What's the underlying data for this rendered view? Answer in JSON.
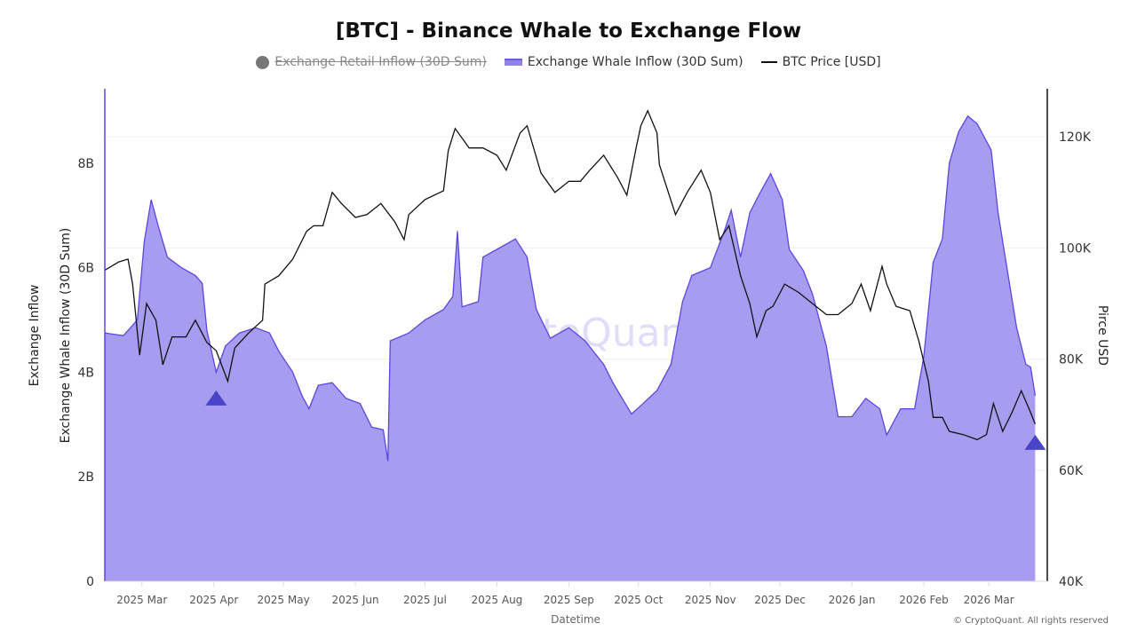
{
  "chart_data": {
    "type": "area",
    "title": "[BTC] - Binance Whale to Exchange Flow",
    "legend": [
      {
        "label": "Exchange Retail Inflow (30D Sum)",
        "hidden": true,
        "color": "#777777"
      },
      {
        "label": "Exchange Whale Inflow (30D Sum)",
        "hidden": false,
        "color": "#a89cf0"
      },
      {
        "label": "BTC Price [USD]",
        "hidden": false,
        "color": "#111111"
      }
    ],
    "legend_placement": "top",
    "xlabel": "Datetime",
    "ylabel_left_outer": "Exchange Inflow",
    "ylabel_left": "Exchange Whale Inflow (30D Sum)",
    "ylabel_right": "Pirce USD",
    "x_range": [
      "2025-02-13",
      "2026-03-22"
    ],
    "x_ticks": [
      {
        "date": "2025-03-01",
        "label": "2025 Mar"
      },
      {
        "date": "2025-04-01",
        "label": "2025 Apr"
      },
      {
        "date": "2025-05-01",
        "label": "2025 May"
      },
      {
        "date": "2025-06-01",
        "label": "2025 Jun"
      },
      {
        "date": "2025-07-01",
        "label": "2025 Jul"
      },
      {
        "date": "2025-08-01",
        "label": "2025 Aug"
      },
      {
        "date": "2025-09-01",
        "label": "2025 Sep"
      },
      {
        "date": "2025-10-01",
        "label": "2025 Oct"
      },
      {
        "date": "2025-11-01",
        "label": "2025 Nov"
      },
      {
        "date": "2025-12-01",
        "label": "2025 Dec"
      },
      {
        "date": "2026-01-01",
        "label": "2026 Jan"
      },
      {
        "date": "2026-02-01",
        "label": "2026 Feb"
      },
      {
        "date": "2026-03-01",
        "label": "2026 Mar"
      }
    ],
    "y_left": {
      "range": [
        0,
        9.4
      ],
      "ticks": [
        {
          "v": 0,
          "label": "0"
        },
        {
          "v": 2,
          "label": "2B"
        },
        {
          "v": 4,
          "label": "4B"
        },
        {
          "v": 6,
          "label": "6B"
        },
        {
          "v": 8,
          "label": "8B"
        }
      ],
      "unit": "B"
    },
    "y_right": {
      "range": [
        40,
        128
      ],
      "ticks": [
        {
          "v": 40,
          "label": "40K"
        },
        {
          "v": 60,
          "label": "60K"
        },
        {
          "v": 80,
          "label": "80K"
        },
        {
          "v": 100,
          "label": "100K"
        },
        {
          "v": 120,
          "label": "120K"
        }
      ],
      "unit": "K USD"
    },
    "grid": true,
    "series": [
      {
        "name": "Exchange Whale Inflow (30D Sum)",
        "axis": "left",
        "color": "#a89cf0",
        "line_color": "#5b47e0",
        "points": [
          [
            "2025-02-13",
            4.75
          ],
          [
            "2025-02-21",
            4.7
          ],
          [
            "2025-02-27",
            5.0
          ],
          [
            "2025-03-02",
            6.5
          ],
          [
            "2025-03-05",
            7.3
          ],
          [
            "2025-03-08",
            6.8
          ],
          [
            "2025-03-12",
            6.2
          ],
          [
            "2025-03-18",
            6.0
          ],
          [
            "2025-03-24",
            5.85
          ],
          [
            "2025-03-27",
            5.7
          ],
          [
            "2025-03-29",
            4.8
          ],
          [
            "2025-04-02",
            4.0
          ],
          [
            "2025-04-06",
            4.5
          ],
          [
            "2025-04-12",
            4.75
          ],
          [
            "2025-04-19",
            4.85
          ],
          [
            "2025-04-25",
            4.75
          ],
          [
            "2025-04-29",
            4.4
          ],
          [
            "2025-05-05",
            4.0
          ],
          [
            "2025-05-09",
            3.55
          ],
          [
            "2025-05-12",
            3.3
          ],
          [
            "2025-05-16",
            3.75
          ],
          [
            "2025-05-22",
            3.8
          ],
          [
            "2025-05-28",
            3.5
          ],
          [
            "2025-06-03",
            3.4
          ],
          [
            "2025-06-08",
            2.95
          ],
          [
            "2025-06-13",
            2.9
          ],
          [
            "2025-06-15",
            2.3
          ],
          [
            "2025-06-16",
            4.6
          ],
          [
            "2025-06-24",
            4.75
          ],
          [
            "2025-07-01",
            5.0
          ],
          [
            "2025-07-09",
            5.2
          ],
          [
            "2025-07-13",
            5.45
          ],
          [
            "2025-07-15",
            6.7
          ],
          [
            "2025-07-17",
            5.25
          ],
          [
            "2025-07-24",
            5.35
          ],
          [
            "2025-07-26",
            6.2
          ],
          [
            "2025-08-01",
            6.35
          ],
          [
            "2025-08-09",
            6.55
          ],
          [
            "2025-08-14",
            6.2
          ],
          [
            "2025-08-18",
            5.2
          ],
          [
            "2025-08-24",
            4.65
          ],
          [
            "2025-09-01",
            4.85
          ],
          [
            "2025-09-08",
            4.6
          ],
          [
            "2025-09-16",
            4.15
          ],
          [
            "2025-09-20",
            3.8
          ],
          [
            "2025-09-24",
            3.5
          ],
          [
            "2025-09-28",
            3.2
          ],
          [
            "2025-10-03",
            3.4
          ],
          [
            "2025-10-09",
            3.65
          ],
          [
            "2025-10-15",
            4.15
          ],
          [
            "2025-10-20",
            5.35
          ],
          [
            "2025-10-24",
            5.85
          ],
          [
            "2025-11-01",
            6.0
          ],
          [
            "2025-11-07",
            6.7
          ],
          [
            "2025-11-10",
            7.1
          ],
          [
            "2025-11-14",
            6.2
          ],
          [
            "2025-11-18",
            7.05
          ],
          [
            "2025-11-22",
            7.4
          ],
          [
            "2025-11-27",
            7.8
          ],
          [
            "2025-12-02",
            7.3
          ],
          [
            "2025-12-05",
            6.35
          ],
          [
            "2025-12-11",
            5.95
          ],
          [
            "2025-12-15",
            5.5
          ],
          [
            "2025-12-21",
            4.5
          ],
          [
            "2025-12-26",
            3.15
          ],
          [
            "2026-01-01",
            3.15
          ],
          [
            "2026-01-07",
            3.5
          ],
          [
            "2026-01-13",
            3.3
          ],
          [
            "2026-01-16",
            2.8
          ],
          [
            "2026-01-22",
            3.3
          ],
          [
            "2026-01-28",
            3.3
          ],
          [
            "2026-02-01",
            4.3
          ],
          [
            "2026-02-05",
            6.1
          ],
          [
            "2026-02-09",
            6.55
          ],
          [
            "2026-02-12",
            8.0
          ],
          [
            "2026-02-16",
            8.6
          ],
          [
            "2026-02-20",
            8.9
          ],
          [
            "2026-02-24",
            8.75
          ],
          [
            "2026-03-02",
            8.25
          ],
          [
            "2026-03-05",
            7.05
          ],
          [
            "2026-03-09",
            5.95
          ],
          [
            "2026-03-13",
            4.85
          ],
          [
            "2026-03-17",
            4.15
          ],
          [
            "2026-03-19",
            4.1
          ],
          [
            "2026-03-21",
            3.55
          ]
        ]
      },
      {
        "name": "BTC Price [USD]",
        "axis": "right",
        "color": "#111111",
        "points": [
          [
            "2025-02-13",
            96
          ],
          [
            "2025-02-19",
            97.5
          ],
          [
            "2025-02-23",
            98
          ],
          [
            "2025-02-25",
            93.5
          ],
          [
            "2025-02-28",
            80.7
          ],
          [
            "2025-03-03",
            90
          ],
          [
            "2025-03-07",
            87
          ],
          [
            "2025-03-10",
            79
          ],
          [
            "2025-03-14",
            84
          ],
          [
            "2025-03-20",
            84
          ],
          [
            "2025-03-24",
            87
          ],
          [
            "2025-03-29",
            83
          ],
          [
            "2025-04-02",
            81.5
          ],
          [
            "2025-04-07",
            76
          ],
          [
            "2025-04-10",
            82
          ],
          [
            "2025-04-16",
            84.7
          ],
          [
            "2025-04-22",
            87
          ],
          [
            "2025-04-23",
            93.5
          ],
          [
            "2025-04-29",
            95
          ],
          [
            "2025-05-05",
            98
          ],
          [
            "2025-05-11",
            103
          ],
          [
            "2025-05-14",
            104
          ],
          [
            "2025-05-18",
            104
          ],
          [
            "2025-05-22",
            110
          ],
          [
            "2025-05-26",
            108
          ],
          [
            "2025-06-01",
            105.5
          ],
          [
            "2025-06-06",
            106
          ],
          [
            "2025-06-12",
            108
          ],
          [
            "2025-06-18",
            104.7
          ],
          [
            "2025-06-22",
            101.5
          ],
          [
            "2025-06-24",
            106
          ],
          [
            "2025-07-01",
            108.7
          ],
          [
            "2025-07-09",
            110.3
          ],
          [
            "2025-07-11",
            117.5
          ],
          [
            "2025-07-14",
            121.5
          ],
          [
            "2025-07-20",
            118
          ],
          [
            "2025-07-26",
            118
          ],
          [
            "2025-08-01",
            116.7
          ],
          [
            "2025-08-05",
            114
          ],
          [
            "2025-08-11",
            120.7
          ],
          [
            "2025-08-14",
            122
          ],
          [
            "2025-08-20",
            113.5
          ],
          [
            "2025-08-26",
            110
          ],
          [
            "2025-09-01",
            112
          ],
          [
            "2025-09-06",
            112
          ],
          [
            "2025-09-10",
            114
          ],
          [
            "2025-09-16",
            116.7
          ],
          [
            "2025-09-22",
            112.7
          ],
          [
            "2025-09-26",
            109.5
          ],
          [
            "2025-09-30",
            118
          ],
          [
            "2025-10-02",
            122
          ],
          [
            "2025-10-05",
            124.7
          ],
          [
            "2025-10-09",
            120.7
          ],
          [
            "2025-10-10",
            115
          ],
          [
            "2025-10-17",
            106
          ],
          [
            "2025-10-22",
            110
          ],
          [
            "2025-10-28",
            114
          ],
          [
            "2025-11-01",
            110
          ],
          [
            "2025-11-05",
            101.5
          ],
          [
            "2025-11-09",
            104
          ],
          [
            "2025-11-14",
            95
          ],
          [
            "2025-11-18",
            90
          ],
          [
            "2025-11-21",
            84
          ],
          [
            "2025-11-25",
            88.7
          ],
          [
            "2025-11-28",
            89.5
          ],
          [
            "2025-12-03",
            93.5
          ],
          [
            "2025-12-09",
            92
          ],
          [
            "2025-12-15",
            90
          ],
          [
            "2025-12-21",
            88
          ],
          [
            "2025-12-26",
            88
          ],
          [
            "2026-01-01",
            90
          ],
          [
            "2026-01-05",
            93.5
          ],
          [
            "2026-01-09",
            88.7
          ],
          [
            "2026-01-14",
            96.7
          ],
          [
            "2026-01-16",
            93.5
          ],
          [
            "2026-01-20",
            89.5
          ],
          [
            "2026-01-26",
            88.7
          ],
          [
            "2026-01-30",
            83
          ],
          [
            "2026-02-03",
            76
          ],
          [
            "2026-02-05",
            69.5
          ],
          [
            "2026-02-09",
            69.5
          ],
          [
            "2026-02-12",
            67
          ],
          [
            "2026-02-18",
            66.4
          ],
          [
            "2026-02-24",
            65.5
          ],
          [
            "2026-02-28",
            66.4
          ],
          [
            "2026-03-03",
            72
          ],
          [
            "2026-03-07",
            67
          ],
          [
            "2026-03-11",
            70.4
          ],
          [
            "2026-03-15",
            74.3
          ],
          [
            "2026-03-19",
            70.4
          ],
          [
            "2026-03-21",
            68.3
          ]
        ]
      }
    ],
    "markers": [
      {
        "date": "2025-04-02",
        "value": 3.5,
        "axis": "left",
        "shape": "triangle-up",
        "color": "#4a44c8"
      },
      {
        "date": "2026-03-21",
        "value": 2.65,
        "axis": "left",
        "shape": "triangle-up",
        "color": "#4a44c8"
      }
    ],
    "watermark": "CryptoQuant",
    "copyright": "© CryptoQuant. All rights reserved"
  }
}
